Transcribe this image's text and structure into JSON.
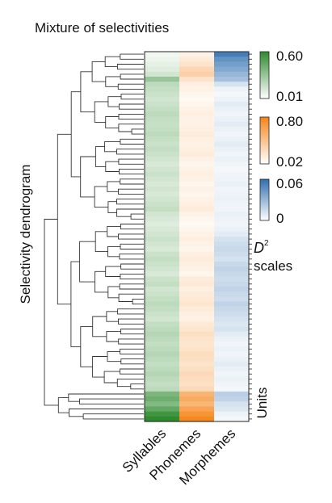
{
  "chart_data": {
    "type": "heatmap",
    "title": "Mixture of selectivities",
    "ylabel": "Selectivity dendrogram",
    "row_axis_label": "Units",
    "columns": [
      "Syllables",
      "Phonemes",
      "Morphemes"
    ],
    "column_colors": [
      "#2e8b2e",
      "#f58518",
      "#2f6fb0"
    ],
    "scales": [
      {
        "name": "Syllables",
        "min": "0.01",
        "max": "0.60"
      },
      {
        "name": "Phonemes",
        "min": "0.02",
        "max": "0.80"
      },
      {
        "name": "Morphemes",
        "min": "0",
        "max": "0.06"
      }
    ],
    "scale_label_symbol": "D",
    "scale_label_sup": "2",
    "scale_label_text": "scales",
    "rows": [
      [
        0.05,
        0.1,
        0.054
      ],
      [
        0.06,
        0.15,
        0.045
      ],
      [
        0.08,
        0.2,
        0.04
      ],
      [
        0.1,
        0.28,
        0.036
      ],
      [
        0.14,
        0.32,
        0.03
      ],
      [
        0.3,
        0.2,
        0.026
      ],
      [
        0.2,
        0.12,
        0.012
      ],
      [
        0.18,
        0.1,
        0.005
      ],
      [
        0.16,
        0.08,
        0.003
      ],
      [
        0.14,
        0.06,
        0.005
      ],
      [
        0.16,
        0.08,
        0.008
      ],
      [
        0.18,
        0.1,
        0.006
      ],
      [
        0.2,
        0.12,
        0.004
      ],
      [
        0.18,
        0.1,
        0.006
      ],
      [
        0.17,
        0.1,
        0.008
      ],
      [
        0.18,
        0.12,
        0.006
      ],
      [
        0.2,
        0.14,
        0.004
      ],
      [
        0.17,
        0.12,
        0.006
      ],
      [
        0.16,
        0.1,
        0.008
      ],
      [
        0.18,
        0.12,
        0.006
      ],
      [
        0.16,
        0.14,
        0.004
      ],
      [
        0.14,
        0.1,
        0.006
      ],
      [
        0.12,
        0.08,
        0.004
      ],
      [
        0.14,
        0.1,
        0.003
      ],
      [
        0.16,
        0.12,
        0.004
      ],
      [
        0.14,
        0.1,
        0.005
      ],
      [
        0.12,
        0.08,
        0.006
      ],
      [
        0.14,
        0.1,
        0.004
      ],
      [
        0.12,
        0.08,
        0.005
      ],
      [
        0.14,
        0.1,
        0.006
      ],
      [
        0.16,
        0.12,
        0.005
      ],
      [
        0.18,
        0.14,
        0.004
      ],
      [
        0.14,
        0.1,
        0.006
      ],
      [
        0.12,
        0.08,
        0.005
      ],
      [
        0.1,
        0.06,
        0.004
      ],
      [
        0.12,
        0.08,
        0.006
      ],
      [
        0.14,
        0.1,
        0.008
      ],
      [
        0.16,
        0.12,
        0.012
      ],
      [
        0.14,
        0.1,
        0.014
      ],
      [
        0.12,
        0.08,
        0.016
      ],
      [
        0.16,
        0.12,
        0.014
      ],
      [
        0.18,
        0.14,
        0.012
      ],
      [
        0.16,
        0.12,
        0.016
      ],
      [
        0.14,
        0.1,
        0.018
      ],
      [
        0.12,
        0.08,
        0.016
      ],
      [
        0.16,
        0.14,
        0.014
      ],
      [
        0.18,
        0.16,
        0.016
      ],
      [
        0.14,
        0.12,
        0.018
      ],
      [
        0.16,
        0.14,
        0.016
      ],
      [
        0.18,
        0.16,
        0.014
      ],
      [
        0.2,
        0.18,
        0.018
      ],
      [
        0.18,
        0.14,
        0.016
      ],
      [
        0.16,
        0.12,
        0.014
      ],
      [
        0.14,
        0.1,
        0.012
      ],
      [
        0.18,
        0.16,
        0.01
      ],
      [
        0.2,
        0.18,
        0.012
      ],
      [
        0.22,
        0.22,
        0.008
      ],
      [
        0.2,
        0.2,
        0.006
      ],
      [
        0.18,
        0.18,
        0.004
      ],
      [
        0.2,
        0.2,
        0.006
      ],
      [
        0.22,
        0.24,
        0.004
      ],
      [
        0.2,
        0.22,
        0.006
      ],
      [
        0.18,
        0.2,
        0.008
      ],
      [
        0.2,
        0.22,
        0.006
      ],
      [
        0.22,
        0.26,
        0.004
      ],
      [
        0.2,
        0.24,
        0.006
      ],
      [
        0.18,
        0.22,
        0.004
      ],
      [
        0.2,
        0.26,
        0.003
      ],
      [
        0.38,
        0.5,
        0.02
      ],
      [
        0.42,
        0.55,
        0.018
      ],
      [
        0.36,
        0.48,
        0.012
      ],
      [
        0.45,
        0.6,
        0.01
      ],
      [
        0.55,
        0.7,
        0.005
      ],
      [
        0.6,
        0.78,
        0.003
      ]
    ]
  }
}
